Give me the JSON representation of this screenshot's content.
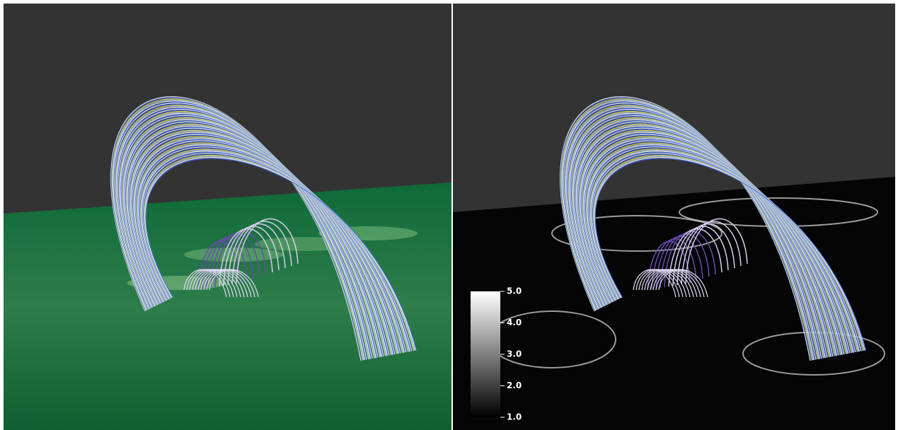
{
  "colorbar": {
    "ticks": [
      {
        "value": 5,
        "label": "5.0"
      },
      {
        "value": 4,
        "label": "4.0"
      },
      {
        "value": 3,
        "label": "3.0"
      },
      {
        "value": 2,
        "label": "2.0"
      },
      {
        "value": 1,
        "label": "1.0"
      }
    ]
  }
}
